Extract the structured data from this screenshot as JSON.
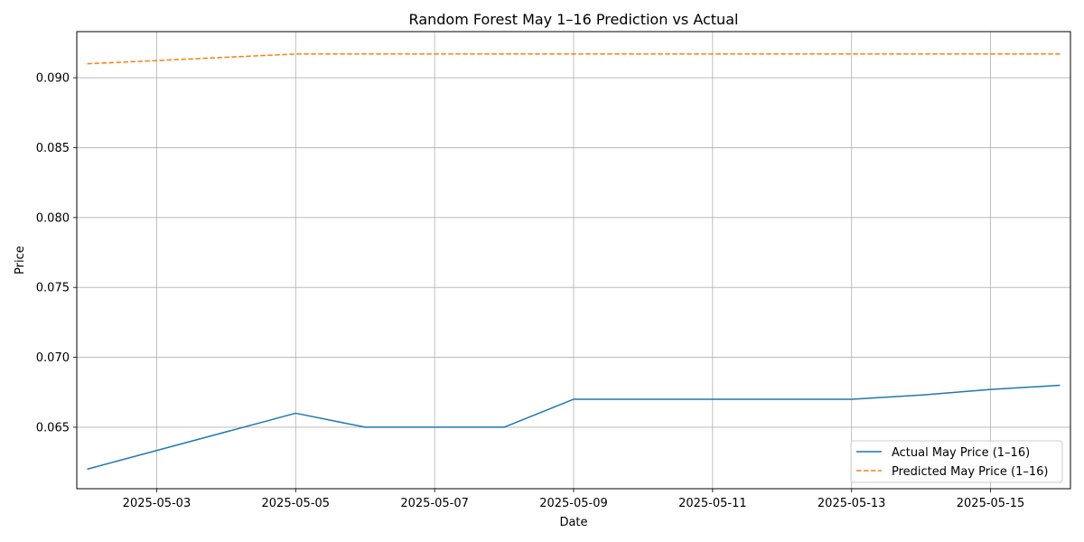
{
  "chart_data": {
    "type": "line",
    "title": "Random Forest May 1–16 Prediction vs Actual",
    "xlabel": "Date",
    "ylabel": "Price",
    "x": [
      "2025-05-02",
      "2025-05-05",
      "2025-05-06",
      "2025-05-07",
      "2025-05-08",
      "2025-05-09",
      "2025-05-12",
      "2025-05-13",
      "2025-05-14",
      "2025-05-15",
      "2025-05-16"
    ],
    "xlim": [
      "2025-05-01T20:24:00",
      "2025-05-16T03:36:00"
    ],
    "ylim": [
      0.0606,
      0.0933
    ],
    "xticks": [
      "2025-05-03",
      "2025-05-05",
      "2025-05-07",
      "2025-05-09",
      "2025-05-11",
      "2025-05-13",
      "2025-05-15"
    ],
    "yticks": [
      "0.065",
      "0.070",
      "0.075",
      "0.080",
      "0.085",
      "0.090"
    ],
    "grid": true,
    "legend_position": "bottom-right",
    "series": [
      {
        "name": "Actual May Price (1–16)",
        "color": "#1f77b4",
        "style": "solid",
        "values": [
          0.062,
          0.066,
          0.065,
          0.065,
          0.065,
          0.067,
          0.067,
          0.067,
          0.0673,
          0.0677,
          0.068
        ]
      },
      {
        "name": "Predicted May Price (1–16)",
        "color": "#ff7f0e",
        "style": "dashed",
        "values": [
          0.091,
          0.0917,
          0.0917,
          0.0917,
          0.0917,
          0.0917,
          0.0917,
          0.0917,
          0.0917,
          0.0917,
          0.0917
        ]
      }
    ]
  }
}
